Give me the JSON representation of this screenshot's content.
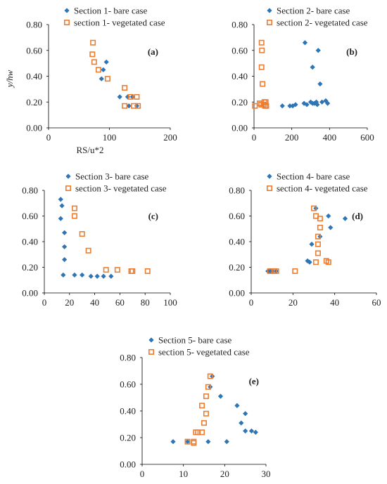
{
  "colors": {
    "bare": "#2e75b6",
    "vegetated": "#ed7d31",
    "axis": "#000000"
  },
  "y_axis_title": "y/hw",
  "x_axis_title": "RS/u*2",
  "chart_data": [
    {
      "id": "a",
      "type": "scatter",
      "panel_label": "(a)",
      "xlim": [
        0,
        200
      ],
      "ylim": [
        0,
        0.8
      ],
      "xticks": [
        "0",
        "100",
        "200"
      ],
      "yticks": [
        "0.00",
        "0.20",
        "0.40",
        "0.60",
        "0.80"
      ],
      "series": [
        {
          "name": "Section 1- bare case",
          "marker": "diamond",
          "points": [
            [
              95,
              0.51
            ],
            [
              90,
              0.45
            ],
            [
              87,
              0.38
            ],
            [
              117,
              0.24
            ],
            [
              130,
              0.24
            ],
            [
              138,
              0.24
            ],
            [
              132,
              0.17
            ],
            [
              145,
              0.17
            ]
          ]
        },
        {
          "name": "section 1- vegetated case",
          "marker": "square",
          "points": [
            [
              73,
              0.66
            ],
            [
              72,
              0.57
            ],
            [
              75,
              0.51
            ],
            [
              82,
              0.45
            ],
            [
              97,
              0.38
            ],
            [
              125,
              0.31
            ],
            [
              135,
              0.24
            ],
            [
              145,
              0.24
            ],
            [
              125,
              0.17
            ],
            [
              140,
              0.17
            ],
            [
              147,
              0.17
            ]
          ]
        }
      ]
    },
    {
      "id": "b",
      "type": "scatter",
      "panel_label": "(b)",
      "xlim": [
        0,
        600
      ],
      "ylim": [
        0,
        0.8
      ],
      "xticks": [
        "0",
        "200",
        "400",
        "600"
      ],
      "yticks": [
        "0.00",
        "0.20",
        "0.40",
        "0.60",
        "0.80"
      ],
      "series": [
        {
          "name": "Section 2- bare case",
          "marker": "diamond",
          "points": [
            [
              270,
              0.66
            ],
            [
              340,
              0.6
            ],
            [
              310,
              0.47
            ],
            [
              350,
              0.34
            ],
            [
              150,
              0.17
            ],
            [
              190,
              0.17
            ],
            [
              205,
              0.17
            ],
            [
              220,
              0.18
            ],
            [
              265,
              0.19
            ],
            [
              280,
              0.18
            ],
            [
              300,
              0.2
            ],
            [
              310,
              0.19
            ],
            [
              320,
              0.19
            ],
            [
              330,
              0.2
            ],
            [
              335,
              0.18
            ],
            [
              360,
              0.2
            ],
            [
              380,
              0.21
            ],
            [
              390,
              0.19
            ]
          ]
        },
        {
          "name": "section 2- vegetated case",
          "marker": "square",
          "points": [
            [
              40,
              0.66
            ],
            [
              42,
              0.6
            ],
            [
              40,
              0.47
            ],
            [
              45,
              0.34
            ],
            [
              55,
              0.2
            ],
            [
              62,
              0.2
            ],
            [
              30,
              0.19
            ],
            [
              38,
              0.18
            ],
            [
              5,
              0.17
            ],
            [
              58,
              0.17
            ],
            [
              65,
              0.17
            ],
            [
              50,
              0.18
            ]
          ]
        }
      ]
    },
    {
      "id": "c",
      "type": "scatter",
      "panel_label": "(c)",
      "xlim": [
        0,
        100
      ],
      "ylim": [
        0,
        0.8
      ],
      "xticks": [
        "0",
        "20",
        "40",
        "60",
        "80",
        "100"
      ],
      "yticks": [
        "0.00",
        "0.20",
        "0.40",
        "0.60",
        "0.80"
      ],
      "series": [
        {
          "name": "Section 3- bare case",
          "marker": "diamond",
          "points": [
            [
              13,
              0.73
            ],
            [
              14,
              0.68
            ],
            [
              13,
              0.58
            ],
            [
              16,
              0.47
            ],
            [
              16,
              0.36
            ],
            [
              16,
              0.26
            ],
            [
              15,
              0.14
            ],
            [
              24,
              0.14
            ],
            [
              30,
              0.14
            ],
            [
              37,
              0.13
            ],
            [
              42,
              0.13
            ],
            [
              47,
              0.13
            ],
            [
              53,
              0.13
            ]
          ]
        },
        {
          "name": "section 3- vegetated case",
          "marker": "square",
          "points": [
            [
              24,
              0.66
            ],
            [
              24,
              0.6
            ],
            [
              30,
              0.46
            ],
            [
              35,
              0.33
            ],
            [
              49,
              0.18
            ],
            [
              58,
              0.18
            ],
            [
              69,
              0.17
            ],
            [
              70,
              0.17
            ],
            [
              82,
              0.17
            ]
          ]
        }
      ]
    },
    {
      "id": "d",
      "type": "scatter",
      "panel_label": "(d)",
      "xlim": [
        0,
        60
      ],
      "ylim": [
        0,
        0.8
      ],
      "xticks": [
        "0",
        "20",
        "40",
        "60"
      ],
      "yticks": [
        "0.00",
        "0.20",
        "0.40",
        "0.60",
        "0.80"
      ],
      "series": [
        {
          "name": "Section 4- bare case",
          "marker": "diamond",
          "points": [
            [
              31,
              0.66
            ],
            [
              37,
              0.6
            ],
            [
              45,
              0.58
            ],
            [
              38,
              0.51
            ],
            [
              33,
              0.44
            ],
            [
              29,
              0.38
            ],
            [
              27,
              0.25
            ],
            [
              28,
              0.24
            ],
            [
              8,
              0.17
            ],
            [
              9,
              0.17
            ],
            [
              10,
              0.17
            ],
            [
              12,
              0.17
            ]
          ]
        },
        {
          "name": "section 4- vegetated case",
          "marker": "square",
          "points": [
            [
              30,
              0.66
            ],
            [
              31,
              0.6
            ],
            [
              33,
              0.58
            ],
            [
              33,
              0.51
            ],
            [
              32,
              0.44
            ],
            [
              32,
              0.38
            ],
            [
              32,
              0.31
            ],
            [
              36,
              0.25
            ],
            [
              37,
              0.24
            ],
            [
              31,
              0.24
            ],
            [
              21,
              0.17
            ],
            [
              9,
              0.17
            ],
            [
              11,
              0.17
            ],
            [
              12,
              0.17
            ]
          ]
        }
      ]
    },
    {
      "id": "e",
      "type": "scatter",
      "panel_label": "(e)",
      "xlim": [
        0,
        30
      ],
      "ylim": [
        0,
        0.8
      ],
      "xticks": [
        "0",
        "10",
        "20",
        "30"
      ],
      "yticks": [
        "0.00",
        "0.20",
        "0.40",
        "0.60",
        "0.80"
      ],
      "series": [
        {
          "name": "Section 5- bare case",
          "marker": "diamond",
          "points": [
            [
              17,
              0.66
            ],
            [
              16.5,
              0.58
            ],
            [
              19,
              0.51
            ],
            [
              23,
              0.44
            ],
            [
              25,
              0.38
            ],
            [
              24,
              0.31
            ],
            [
              25,
              0.25
            ],
            [
              26.5,
              0.25
            ],
            [
              27.5,
              0.24
            ],
            [
              7.5,
              0.17
            ],
            [
              11,
              0.17
            ],
            [
              16,
              0.17
            ],
            [
              20.5,
              0.17
            ]
          ]
        },
        {
          "name": "section 5- vegetated case",
          "marker": "square",
          "points": [
            [
              16.5,
              0.66
            ],
            [
              16,
              0.58
            ],
            [
              15.5,
              0.51
            ],
            [
              14.5,
              0.44
            ],
            [
              15.5,
              0.38
            ],
            [
              15,
              0.31
            ],
            [
              13,
              0.24
            ],
            [
              13.5,
              0.24
            ],
            [
              14.5,
              0.24
            ],
            [
              11,
              0.17
            ],
            [
              12.5,
              0.17
            ],
            [
              12.5,
              0.16
            ]
          ]
        }
      ]
    }
  ]
}
